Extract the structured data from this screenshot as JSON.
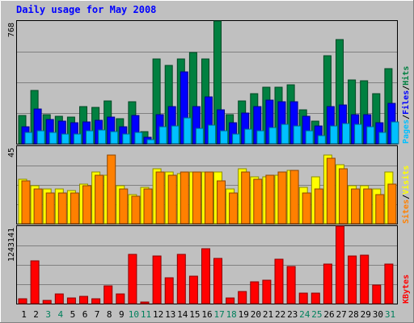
{
  "chart_data": {
    "type": "bar",
    "title": "Daily usage for May 2008",
    "categories": [
      "1",
      "2",
      "3",
      "4",
      "5",
      "6",
      "7",
      "8",
      "9",
      "10",
      "11",
      "12",
      "13",
      "14",
      "15",
      "16",
      "17",
      "18",
      "19",
      "20",
      "21",
      "22",
      "23",
      "24",
      "25",
      "26",
      "27",
      "28",
      "29",
      "30",
      "31"
    ],
    "weekend_categories": [
      "3",
      "4",
      "10",
      "11",
      "17",
      "18",
      "24",
      "25",
      "31"
    ],
    "panels": [
      {
        "id": "hits-files-pages",
        "ymax_label": "768",
        "ylim": [
          0,
          768
        ],
        "legend": [
          "Pages",
          "Files",
          "Hits"
        ],
        "series": [
          {
            "name": "Hits",
            "color": "#008040",
            "values": [
              175,
              335,
              182,
              172,
              165,
              233,
              225,
              268,
              158,
              262,
              78,
              528,
              492,
              532,
              572,
              532,
              768,
              182,
              268,
              312,
              352,
              352,
              368,
              212,
              142,
              552,
              652,
              400,
              392,
              312,
              472
            ]
          },
          {
            "name": "Files",
            "color": "#0000ff",
            "values": [
              105,
              215,
              152,
              142,
              132,
              135,
              145,
              165,
              105,
              175,
              42,
              182,
              232,
              452,
              232,
              292,
              212,
              132,
              192,
              232,
              272,
              262,
              262,
              172,
              112,
              232,
              242,
              182,
              182,
              132,
              252
            ]
          },
          {
            "name": "Pages",
            "color": "#00c0ff",
            "values": [
              70,
              80,
              70,
              60,
              60,
              80,
              85,
              75,
              60,
              70,
              25,
              105,
              110,
              160,
              95,
              115,
              80,
              60,
              90,
              80,
              100,
              120,
              110,
              80,
              50,
              110,
              125,
              120,
              105,
              70,
              135
            ]
          }
        ]
      },
      {
        "id": "visits-sites",
        "ymax_label": "45",
        "ylim": [
          0,
          45
        ],
        "legend": [
          "Sites",
          "Visits"
        ],
        "series": [
          {
            "name": "Visits",
            "color": "#ffff00",
            "values": [
              26,
              22,
              20,
              20,
              19,
              23,
              30,
              28,
              22,
              17,
              21,
              32,
              30,
              29,
              30,
              30,
              30,
              20,
              32,
              27,
              27,
              28,
              31,
              21,
              27,
              40,
              34,
              22,
              22,
              20,
              30
            ]
          },
          {
            "name": "Sites",
            "color": "#ff8000",
            "values": [
              25,
              20,
              18,
              18,
              18,
              22,
              28,
              40,
              20,
              16,
              20,
              30,
              28,
              30,
              30,
              30,
              25,
              18,
              30,
              26,
              28,
              30,
              31,
              18,
              20,
              38,
              32,
              20,
              20,
              17,
              23
            ]
          }
        ]
      },
      {
        "id": "kbytes",
        "ymax_label": "1243141",
        "ylim": [
          0,
          1243141
        ],
        "legend": [
          "KBytes"
        ],
        "series": [
          {
            "name": "KBytes",
            "color": "#ff0000",
            "values": [
              80000,
              680000,
              50000,
              155000,
              95000,
              115000,
              75000,
              280000,
              155000,
              790000,
              20000,
              760000,
              420000,
              790000,
              440000,
              880000,
              730000,
              95000,
              200000,
              345000,
              380000,
              710000,
              590000,
              170000,
              170000,
              640000,
              1243141,
              765000,
              775000,
              295000,
              640000
            ]
          }
        ]
      }
    ]
  },
  "colors": {
    "background": "#c0c0c0",
    "title": "#0000ff",
    "weekend_label": "#00805c",
    "weekday_label": "#000000",
    "gridline": "#808080"
  }
}
